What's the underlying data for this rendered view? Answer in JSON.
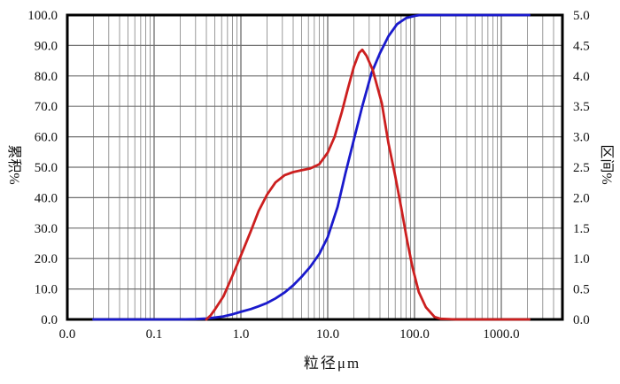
{
  "chart_data": {
    "type": "line",
    "title": "",
    "background": "#ffffff",
    "grid_color_minor": "#9a9a9a",
    "grid_color_major": "#6e6e6e",
    "border_color": "#000000",
    "x_axis": {
      "title": "粒径μm",
      "scale": "log",
      "min": 0.01,
      "max": 5000,
      "ticks": [
        {
          "v": 0.01,
          "label": "0.0"
        },
        {
          "v": 0.1,
          "label": "0.1"
        },
        {
          "v": 1,
          "label": "1.0"
        },
        {
          "v": 10,
          "label": "10.0"
        },
        {
          "v": 100,
          "label": "100.0"
        },
        {
          "v": 1000,
          "label": "1000.0"
        }
      ]
    },
    "y_left": {
      "title": "累积%",
      "min": 0,
      "max": 100,
      "ticks": [
        {
          "v": 100,
          "label": "100.0"
        },
        {
          "v": 90,
          "label": "90.0"
        },
        {
          "v": 80,
          "label": "80.0"
        },
        {
          "v": 70,
          "label": "70.0"
        },
        {
          "v": 60,
          "label": "60.0"
        },
        {
          "v": 50,
          "label": "50.0"
        },
        {
          "v": 40,
          "label": "40.0"
        },
        {
          "v": 30,
          "label": "30.0"
        },
        {
          "v": 20,
          "label": "20.0"
        },
        {
          "v": 10,
          "label": "10.0"
        },
        {
          "v": 0,
          "label": "0.0"
        }
      ]
    },
    "y_right": {
      "title": "区间%",
      "min": 0,
      "max": 5,
      "ticks": [
        {
          "v": 5.0,
          "label": "5.0"
        },
        {
          "v": 4.5,
          "label": "4.5"
        },
        {
          "v": 4.0,
          "label": "4.0"
        },
        {
          "v": 3.5,
          "label": "3.5"
        },
        {
          "v": 3.0,
          "label": "3.0"
        },
        {
          "v": 2.5,
          "label": "2.5"
        },
        {
          "v": 2.0,
          "label": "2.0"
        },
        {
          "v": 1.5,
          "label": "1.5"
        },
        {
          "v": 1.0,
          "label": "1.0"
        },
        {
          "v": 0.5,
          "label": "0.5"
        },
        {
          "v": 0.0,
          "label": "0.0"
        }
      ]
    },
    "series": [
      {
        "name": "cumulative-percent",
        "axis": "left",
        "color": "#1a1acc",
        "points": [
          [
            0.02,
            0
          ],
          [
            0.05,
            0
          ],
          [
            0.1,
            0
          ],
          [
            0.2,
            0
          ],
          [
            0.3,
            0.1
          ],
          [
            0.4,
            0.3
          ],
          [
            0.5,
            0.6
          ],
          [
            0.63,
            1.0
          ],
          [
            0.8,
            1.7
          ],
          [
            1.0,
            2.5
          ],
          [
            1.3,
            3.4
          ],
          [
            1.6,
            4.3
          ],
          [
            2.0,
            5.4
          ],
          [
            2.5,
            6.9
          ],
          [
            3.2,
            8.9
          ],
          [
            4.0,
            11.2
          ],
          [
            5.0,
            14.0
          ],
          [
            6.3,
            17.3
          ],
          [
            8.0,
            21.5
          ],
          [
            10,
            27
          ],
          [
            13,
            37
          ],
          [
            16,
            48
          ],
          [
            20,
            59
          ],
          [
            25,
            70
          ],
          [
            32,
            81
          ],
          [
            40,
            87.5
          ],
          [
            50,
            93
          ],
          [
            63,
            97
          ],
          [
            80,
            99
          ],
          [
            100,
            99.7
          ],
          [
            115,
            100
          ],
          [
            150,
            100
          ],
          [
            300,
            100
          ],
          [
            600,
            100
          ],
          [
            1200,
            100
          ],
          [
            2100,
            100
          ]
        ]
      },
      {
        "name": "interval-percent",
        "axis": "right",
        "color": "#cc1f1f",
        "points": [
          [
            0.4,
            0
          ],
          [
            0.45,
            0.07
          ],
          [
            0.5,
            0.16
          ],
          [
            0.63,
            0.38
          ],
          [
            0.8,
            0.72
          ],
          [
            1.0,
            1.05
          ],
          [
            1.3,
            1.45
          ],
          [
            1.6,
            1.78
          ],
          [
            2.0,
            2.05
          ],
          [
            2.5,
            2.25
          ],
          [
            3.2,
            2.37
          ],
          [
            4.0,
            2.42
          ],
          [
            5.0,
            2.45
          ],
          [
            6.3,
            2.48
          ],
          [
            8.0,
            2.55
          ],
          [
            10,
            2.74
          ],
          [
            12,
            3.0
          ],
          [
            14.5,
            3.4
          ],
          [
            17,
            3.78
          ],
          [
            20,
            4.15
          ],
          [
            23,
            4.38
          ],
          [
            25,
            4.43
          ],
          [
            28,
            4.33
          ],
          [
            33,
            4.1
          ],
          [
            42,
            3.55
          ],
          [
            50,
            2.9
          ],
          [
            60,
            2.35
          ],
          [
            70,
            1.85
          ],
          [
            82,
            1.3
          ],
          [
            95,
            0.85
          ],
          [
            112,
            0.45
          ],
          [
            135,
            0.2
          ],
          [
            170,
            0.04
          ],
          [
            200,
            0.01
          ],
          [
            300,
            0
          ],
          [
            600,
            0
          ],
          [
            1200,
            0
          ],
          [
            2100,
            0
          ]
        ]
      }
    ],
    "legend": "none"
  }
}
